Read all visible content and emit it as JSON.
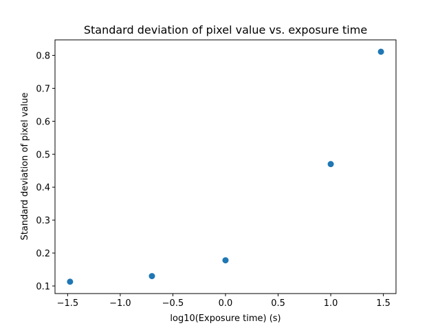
{
  "chart_data": {
    "type": "scatter",
    "title": "Standard deviation of pixel value vs. exposure time",
    "xlabel": "log10(Exposure time) (s)",
    "ylabel": "Standard deviation of pixel value",
    "xlim": [
      -1.62,
      1.62
    ],
    "ylim": [
      0.077,
      0.847
    ],
    "xticks": [
      -1.5,
      -1.0,
      -0.5,
      0.0,
      0.5,
      1.0,
      1.5
    ],
    "xtick_labels": [
      "−1.5",
      "−1.0",
      "−0.5",
      "0.0",
      "0.5",
      "1.0",
      "1.5"
    ],
    "yticks": [
      0.1,
      0.2,
      0.3,
      0.4,
      0.5,
      0.6,
      0.7,
      0.8
    ],
    "ytick_labels": [
      "0.1",
      "0.2",
      "0.3",
      "0.4",
      "0.5",
      "0.6",
      "0.7",
      "0.8"
    ],
    "grid": false,
    "series": [
      {
        "color": "#1f77b4",
        "points": [
          {
            "x": -1.477,
            "y": 0.113
          },
          {
            "x": -0.699,
            "y": 0.13
          },
          {
            "x": 0.0,
            "y": 0.178
          },
          {
            "x": 1.0,
            "y": 0.47
          },
          {
            "x": 1.477,
            "y": 0.811
          }
        ]
      }
    ]
  }
}
